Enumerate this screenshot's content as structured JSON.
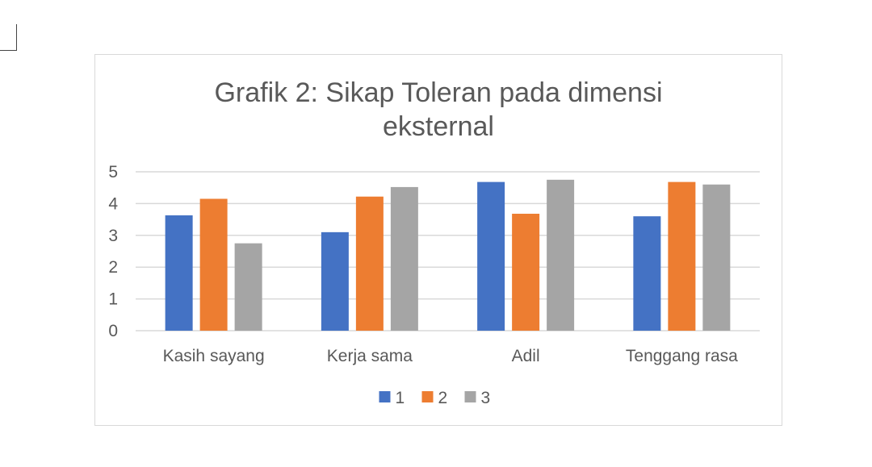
{
  "chart_data": {
    "type": "bar",
    "title": "Grafik 2: Sikap Toleran pada dimensi eksternal",
    "title_lines": [
      "Grafik 2: Sikap Toleran pada dimensi",
      "eksternal"
    ],
    "categories": [
      "Kasih sayang",
      "Kerja sama",
      "Adil",
      "Tenggang rasa"
    ],
    "series": [
      {
        "name": "1",
        "color": "#4472c4",
        "values": [
          3.63,
          3.1,
          4.68,
          3.6
        ]
      },
      {
        "name": "2",
        "color": "#ed7d31",
        "values": [
          4.15,
          4.22,
          3.68,
          4.68
        ]
      },
      {
        "name": "3",
        "color": "#a5a5a5",
        "values": [
          2.75,
          4.52,
          4.75,
          4.6
        ]
      }
    ],
    "ylim": [
      0,
      5
    ],
    "yticks": [
      0,
      1,
      2,
      3,
      4,
      5
    ],
    "xlabel": "",
    "ylabel": "",
    "grid": true,
    "legend_position": "bottom",
    "gridline_color": "#d9d9d9",
    "text_color": "#595959"
  }
}
